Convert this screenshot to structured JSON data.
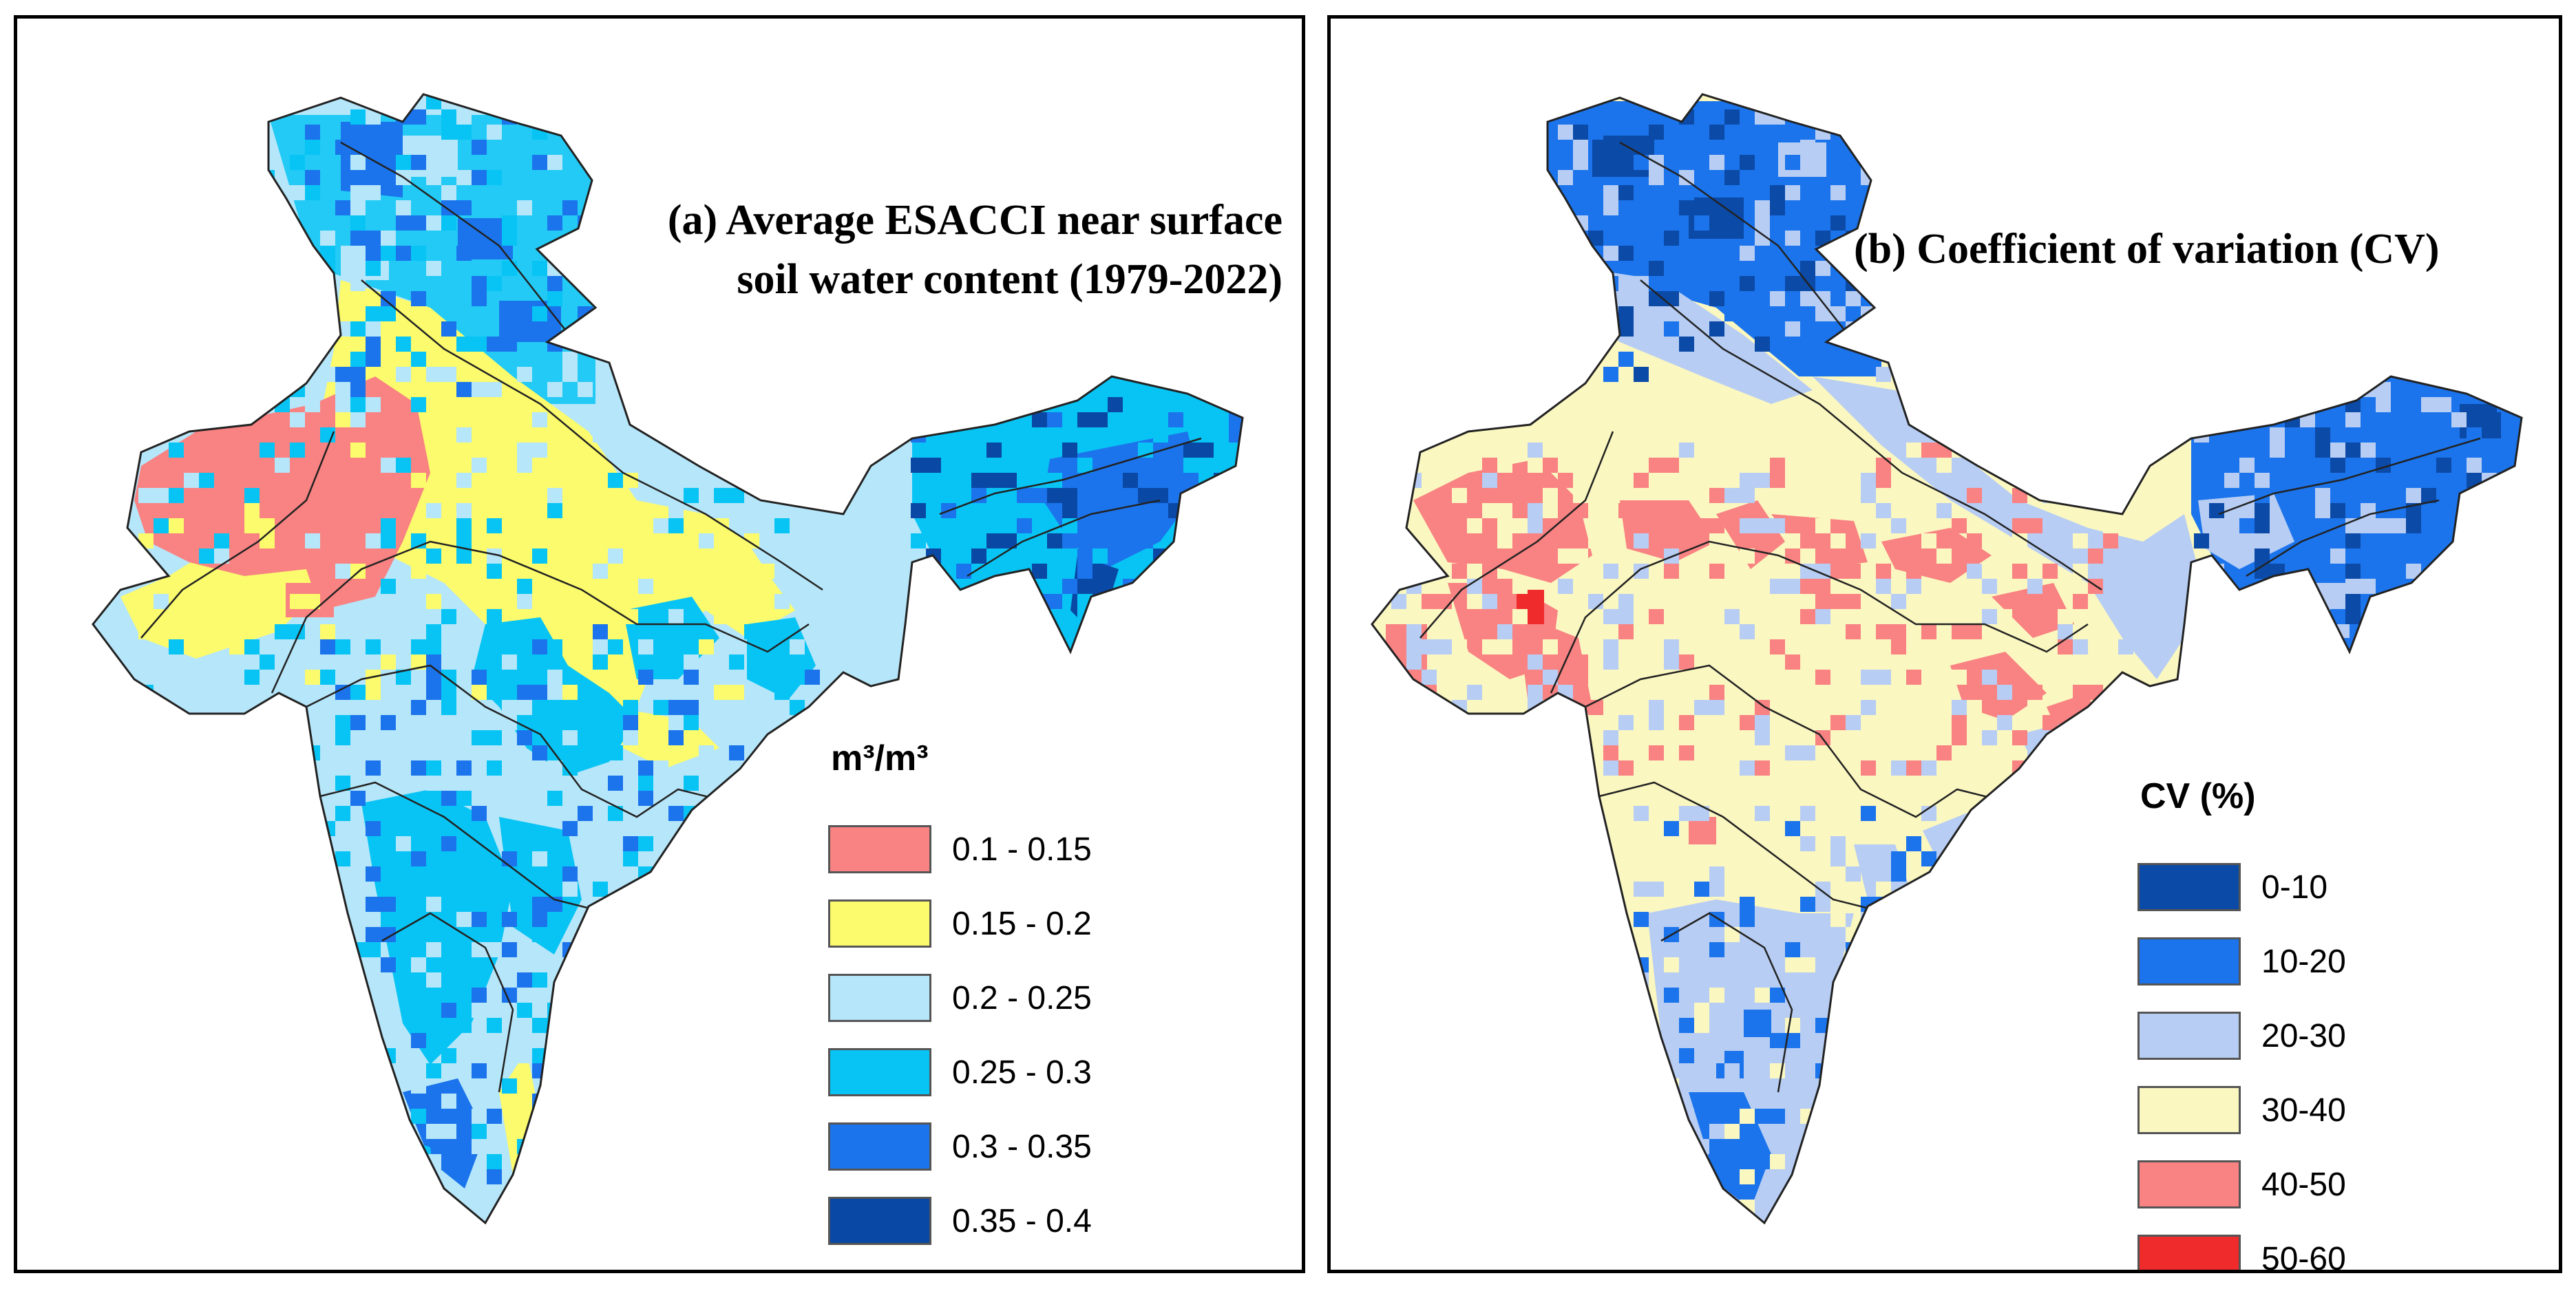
{
  "panels": [
    {
      "id": "a",
      "title_line1": "(a) Average ESACCI near surface",
      "title_line2": "soil water content (1979-2022)",
      "legend_title": "m³/m³",
      "classes": [
        {
          "label": "0.1 - 0.15",
          "color": "#f98282"
        },
        {
          "label": "0.15 - 0.2",
          "color": "#fbfb6d"
        },
        {
          "label": "0.2 - 0.25",
          "color": "#b6e6f9"
        },
        {
          "label": "0.25 - 0.3",
          "color": "#08c4f4"
        },
        {
          "label": "0.3 - 0.35",
          "color": "#1b74ec"
        },
        {
          "label": "0.35 - 0.4",
          "color": "#0a48a6"
        }
      ]
    },
    {
      "id": "b",
      "title_line1": "(b) Coefficient of variation (CV)",
      "legend_title": "CV (%)",
      "classes": [
        {
          "label": "0-10",
          "color": "#0b4aa6"
        },
        {
          "label": "10-20",
          "color": "#1b74ec"
        },
        {
          "label": "20-30",
          "color": "#b7cdf3"
        },
        {
          "label": "30-40",
          "color": "#fbf7c1"
        },
        {
          "label": "40-50",
          "color": "#f98282"
        },
        {
          "label": "50-60",
          "color": "#ef2b2b"
        }
      ]
    }
  ]
}
